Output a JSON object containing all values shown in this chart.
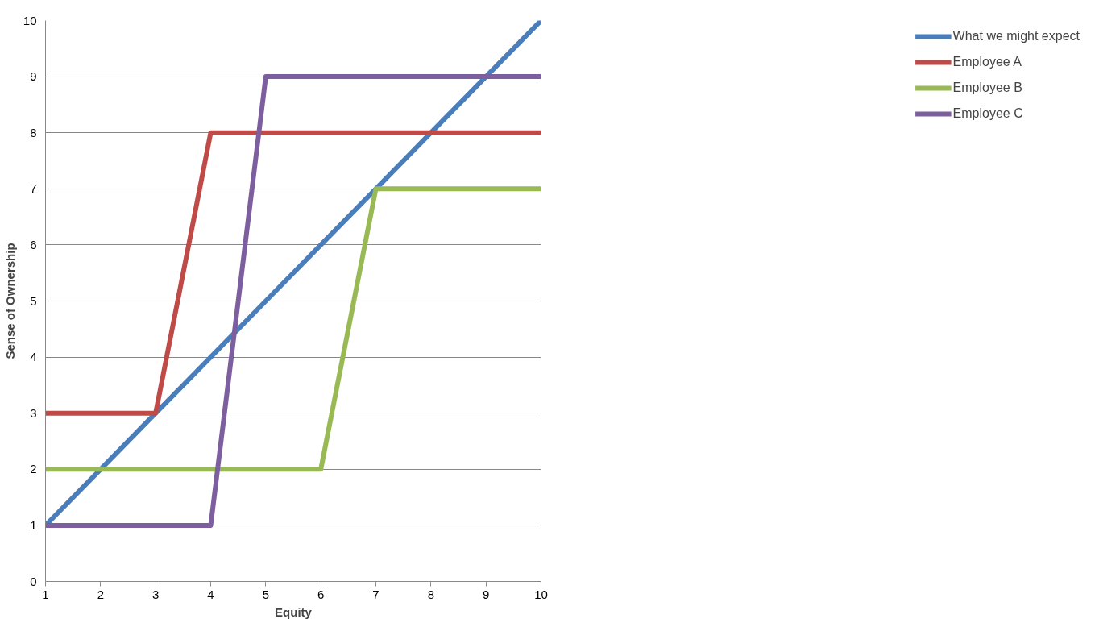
{
  "chart_data": {
    "type": "line",
    "xlabel": "Equity",
    "ylabel": "Sense of Ownership",
    "x": [
      1,
      2,
      3,
      4,
      5,
      6,
      7,
      8,
      9,
      10
    ],
    "series": [
      {
        "name": "What we might expect",
        "color": "#4a7ebb",
        "values": [
          1,
          2,
          3,
          4,
          5,
          6,
          7,
          8,
          9,
          10
        ]
      },
      {
        "name": "Employee A",
        "color": "#be4b48",
        "values": [
          3,
          3,
          3,
          8,
          8,
          8,
          8,
          8,
          8,
          8
        ]
      },
      {
        "name": "Employee B",
        "color": "#98b954",
        "values": [
          2,
          2,
          2,
          2,
          2,
          2,
          7,
          7,
          7,
          7
        ]
      },
      {
        "name": "Employee C",
        "color": "#7d5fa0",
        "values": [
          1,
          1,
          1,
          1,
          9,
          9,
          9,
          9,
          9,
          9
        ]
      }
    ],
    "xlim": [
      1,
      10
    ],
    "xticks": [
      1,
      2,
      3,
      4,
      5,
      6,
      7,
      8,
      9,
      10
    ],
    "ylim": [
      0,
      10
    ],
    "yticks": [
      0,
      1,
      2,
      3,
      4,
      5,
      6,
      7,
      8,
      9,
      10
    ],
    "grid": "y",
    "legend": "right",
    "marker": "none",
    "line_style": "solid"
  }
}
